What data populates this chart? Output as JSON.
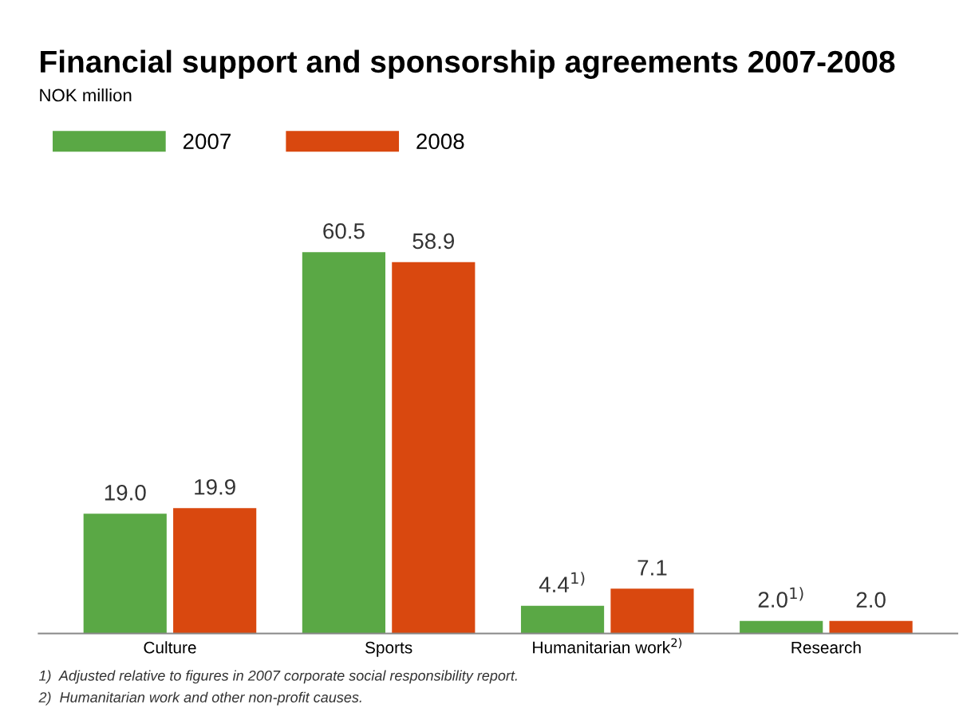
{
  "chart_data": {
    "type": "bar",
    "title": "Financial support and sponsorship agreements 2007-2008",
    "subtitle": "NOK million",
    "categories": [
      "Culture",
      "Sports",
      "Humanitarian work$^{2)}$",
      "Research"
    ],
    "series": [
      {
        "name": "2007",
        "color": "#5aa845",
        "values": [
          19.0,
          60.5,
          4.4,
          2.0
        ],
        "value_labels": [
          "19.0",
          "60.5",
          "4.4$^{1)}$",
          "2.0$^{1)}$"
        ]
      },
      {
        "name": "2008",
        "color": "#d9480f",
        "values": [
          19.9,
          58.9,
          7.1,
          2.0
        ],
        "value_labels": [
          "19.9",
          "58.9",
          "7.1",
          "2.0"
        ]
      }
    ],
    "legend": "top left",
    "grid": false,
    "tick_labels": "x",
    "annotations": [
      "1)  Adjusted relative to figures in 2007 corporate social responsibility report.",
      "2)  Humanitarian work and other non-profit causes."
    ]
  }
}
